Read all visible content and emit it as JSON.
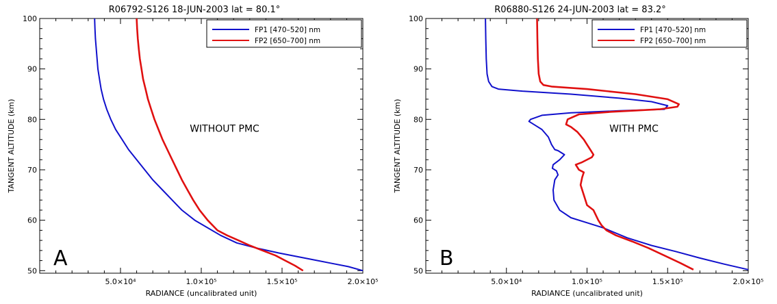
{
  "chart_data": [
    {
      "type": "line",
      "title": "R06792-S126     18-JUN-2003     lat =  80.1°",
      "xlabel": "RADIANCE (uncalibrated unit)",
      "ylabel": "TANGENT ALTITUDE (km)",
      "xlim": [
        0,
        200000
      ],
      "ylim": [
        49.5,
        100
      ],
      "xticks": [
        50000,
        100000,
        150000,
        200000
      ],
      "xtick_labels": [
        "5.0×10⁴",
        "1.0×10⁵",
        "1.5×10⁵",
        "2.0×10⁵"
      ],
      "yticks": [
        50,
        60,
        70,
        80,
        90,
        100
      ],
      "ytick_labels": [
        "50",
        "60",
        "70",
        "80",
        "90",
        "100"
      ],
      "legend": "top-right",
      "annotation": "WITHOUT PMC",
      "panel_label": "A",
      "series": [
        {
          "name": "FP1 [470–520] nm",
          "color": "#1010cc",
          "points": [
            [
              34000,
              100
            ],
            [
              34200,
              98
            ],
            [
              34500,
              96
            ],
            [
              35000,
              94
            ],
            [
              35500,
              92
            ],
            [
              36000,
              90
            ],
            [
              37000,
              88
            ],
            [
              38000,
              86
            ],
            [
              39500,
              84
            ],
            [
              41500,
              82
            ],
            [
              44000,
              80
            ],
            [
              47000,
              78
            ],
            [
              51000,
              76
            ],
            [
              55000,
              74
            ],
            [
              60000,
              72
            ],
            [
              65000,
              70
            ],
            [
              70000,
              68
            ],
            [
              76000,
              66
            ],
            [
              82000,
              64
            ],
            [
              88000,
              62
            ],
            [
              96000,
              60
            ],
            [
              104000,
              58.5
            ],
            [
              112000,
              57
            ],
            [
              122000,
              55.5
            ],
            [
              134000,
              54.5
            ],
            [
              148000,
              53.5
            ],
            [
              164000,
              52.5
            ],
            [
              180000,
              51.5
            ],
            [
              191000,
              50.8
            ],
            [
              200000,
              50
            ]
          ]
        },
        {
          "name": "FP2 [650–700] nm",
          "color": "#e01010",
          "points": [
            [
              60000,
              100
            ],
            [
              60300,
              98
            ],
            [
              60700,
              96
            ],
            [
              61300,
              94
            ],
            [
              62000,
              92
            ],
            [
              63000,
              90
            ],
            [
              64000,
              88
            ],
            [
              65500,
              86
            ],
            [
              67000,
              84
            ],
            [
              69000,
              82
            ],
            [
              71000,
              80
            ],
            [
              73500,
              78
            ],
            [
              76000,
              76
            ],
            [
              79000,
              74
            ],
            [
              82000,
              72
            ],
            [
              85000,
              70
            ],
            [
              88000,
              68
            ],
            [
              91500,
              66
            ],
            [
              95000,
              64
            ],
            [
              99000,
              62
            ],
            [
              104000,
              60
            ],
            [
              110000,
              58
            ],
            [
              116000,
              57
            ],
            [
              123000,
              56
            ],
            [
              130000,
              55
            ],
            [
              138000,
              54
            ],
            [
              146000,
              53
            ],
            [
              152000,
              52
            ],
            [
              158000,
              51
            ],
            [
              163000,
              50
            ]
          ]
        }
      ]
    },
    {
      "type": "line",
      "title": "R06880-S126     24-JUN-2003     lat =  83.2°",
      "xlabel": "RADIANCE (uncalibrated unit)",
      "ylabel": "TANGENT ALTITUDE (km)",
      "xlim": [
        0,
        200000
      ],
      "ylim": [
        49.5,
        100
      ],
      "xticks": [
        50000,
        100000,
        150000,
        200000
      ],
      "xtick_labels": [
        "5.0×10⁴",
        "1.0×10⁵",
        "1.5×10⁵",
        "2.0×10⁵"
      ],
      "yticks": [
        50,
        60,
        70,
        80,
        90,
        100
      ],
      "ytick_labels": [
        "50",
        "60",
        "70",
        "80",
        "90",
        "100"
      ],
      "legend": "top-right",
      "annotation": "WITH PMC",
      "panel_label": "B",
      "series": [
        {
          "name": "FP1 [470–520] nm",
          "color": "#1010cc",
          "points": [
            [
              37000,
              100
            ],
            [
              37200,
              96
            ],
            [
              37500,
              92
            ],
            [
              38000,
              89
            ],
            [
              39000,
              87.5
            ],
            [
              41000,
              86.5
            ],
            [
              45000,
              86
            ],
            [
              60000,
              85.6
            ],
            [
              90000,
              85
            ],
            [
              120000,
              84.2
            ],
            [
              140000,
              83.5
            ],
            [
              150000,
              82.7
            ],
            [
              148000,
              82
            ],
            [
              120000,
              81.7
            ],
            [
              90000,
              81.3
            ],
            [
              72000,
              80.8
            ],
            [
              65000,
              80
            ],
            [
              64000,
              79.6
            ],
            [
              68000,
              78.8
            ],
            [
              72000,
              78
            ],
            [
              76000,
              76.5
            ],
            [
              78000,
              75
            ],
            [
              80000,
              74
            ],
            [
              82000,
              73.8
            ],
            [
              86000,
              73
            ],
            [
              83000,
              72
            ],
            [
              79000,
              71
            ],
            [
              78500,
              70.3
            ],
            [
              81000,
              69.8
            ],
            [
              82000,
              69
            ],
            [
              80000,
              68
            ],
            [
              79000,
              66
            ],
            [
              79500,
              64
            ],
            [
              83000,
              62
            ],
            [
              90000,
              60.5
            ],
            [
              100000,
              59.5
            ],
            [
              110000,
              58.5
            ],
            [
              125000,
              56.5
            ],
            [
              140000,
              55
            ],
            [
              155000,
              53.8
            ],
            [
              170000,
              52.5
            ],
            [
              185000,
              51.3
            ],
            [
              200000,
              50.2
            ]
          ]
        },
        {
          "name": "FP2 [650–700] nm",
          "color": "#e01010",
          "points": [
            [
              69000,
              100
            ],
            [
              69200,
              96
            ],
            [
              69500,
              92
            ],
            [
              70000,
              89
            ],
            [
              71000,
              87.5
            ],
            [
              73000,
              86.8
            ],
            [
              78000,
              86.5
            ],
            [
              100000,
              86
            ],
            [
              130000,
              85
            ],
            [
              150000,
              84
            ],
            [
              157000,
              83
            ],
            [
              156000,
              82.5
            ],
            [
              145000,
              82
            ],
            [
              115000,
              81.5
            ],
            [
              95000,
              81
            ],
            [
              88000,
              80
            ],
            [
              87000,
              79
            ],
            [
              90000,
              78.5
            ],
            [
              94000,
              77.5
            ],
            [
              98000,
              76
            ],
            [
              100000,
              75
            ],
            [
              102000,
              74
            ],
            [
              104000,
              73
            ],
            [
              103000,
              72.5
            ],
            [
              97000,
              71.5
            ],
            [
              93000,
              71
            ],
            [
              95000,
              70
            ],
            [
              98000,
              69.5
            ],
            [
              97000,
              68.5
            ],
            [
              96000,
              67
            ],
            [
              98000,
              65
            ],
            [
              100000,
              63
            ],
            [
              104000,
              62
            ],
            [
              107000,
              60
            ],
            [
              109000,
              59
            ],
            [
              112000,
              58
            ],
            [
              118000,
              57
            ],
            [
              128000,
              55.8
            ],
            [
              138000,
              54.5
            ],
            [
              148000,
              53
            ],
            [
              158000,
              51.5
            ],
            [
              166000,
              50.2
            ]
          ]
        }
      ]
    }
  ]
}
